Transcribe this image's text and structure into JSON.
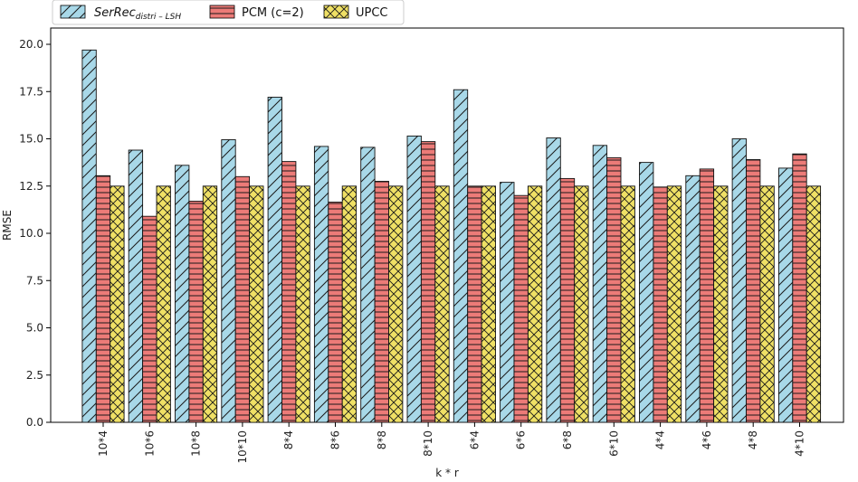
{
  "chart_data": {
    "type": "bar",
    "xlabel": "k * r",
    "ylabel": "RMSE",
    "ylim": [
      0,
      21
    ],
    "yticks": [
      "0.0",
      "2.5",
      "5.0",
      "7.5",
      "10.0",
      "12.5",
      "15.0",
      "17.5",
      "20.0"
    ],
    "categories": [
      "10*4",
      "10*6",
      "10*8",
      "10*10",
      "8*4",
      "8*6",
      "8*8",
      "8*10",
      "6*4",
      "6*6",
      "6*8",
      "6*10",
      "4*4",
      "4*6",
      "4*8",
      "4*10"
    ],
    "legend_position": "top-left",
    "grid": false,
    "series": [
      {
        "name_main": "SerRec",
        "name_sub": "distri – LSH",
        "color": "#a8d8e8",
        "hatch": "diagonal",
        "values": [
          19.7,
          14.4,
          13.6,
          14.95,
          17.2,
          14.6,
          14.55,
          15.15,
          17.6,
          12.7,
          15.05,
          14.65,
          13.75,
          13.05,
          15.0,
          13.45
        ]
      },
      {
        "name": "PCM (c=2)",
        "color": "#ec7b78",
        "hatch": "horizontal",
        "values": [
          13.05,
          10.9,
          11.7,
          13.0,
          13.8,
          11.65,
          12.75,
          14.85,
          12.5,
          12.0,
          12.9,
          14.0,
          12.45,
          13.4,
          13.9,
          14.2
        ]
      },
      {
        "name": "UPCC",
        "color": "#efe065",
        "hatch": "cross",
        "values": [
          12.5,
          12.5,
          12.5,
          12.5,
          12.5,
          12.5,
          12.5,
          12.5,
          12.5,
          12.5,
          12.5,
          12.5,
          12.5,
          12.5,
          12.5,
          12.5
        ]
      }
    ]
  }
}
